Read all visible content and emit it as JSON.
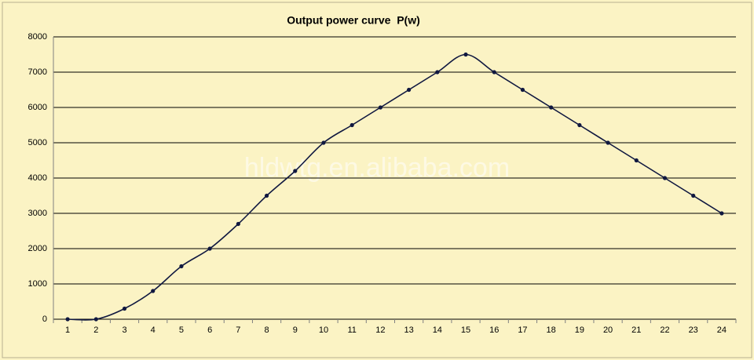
{
  "chart_data": {
    "type": "line",
    "title": "Output power curve  P(w)",
    "watermark": "hldwtg.en.alibaba.com",
    "categories": [
      "1",
      "2",
      "3",
      "4",
      "5",
      "6",
      "7",
      "8",
      "9",
      "10",
      "11",
      "12",
      "13",
      "14",
      "15",
      "16",
      "17",
      "18",
      "19",
      "20",
      "21",
      "22",
      "23",
      "24"
    ],
    "series": [
      {
        "name": "P(w)",
        "color": "#101840",
        "values": [
          0,
          0,
          300,
          800,
          1500,
          2000,
          2700,
          3500,
          4200,
          5000,
          5500,
          6000,
          6500,
          7000,
          7500,
          7000,
          6500,
          6000,
          5500,
          5000,
          4500,
          4000,
          3500,
          3000
        ]
      }
    ],
    "ylim": [
      0,
      8000
    ],
    "yticks": [
      0,
      1000,
      2000,
      3000,
      4000,
      5000,
      6000,
      7000,
      8000
    ],
    "grid": true
  }
}
